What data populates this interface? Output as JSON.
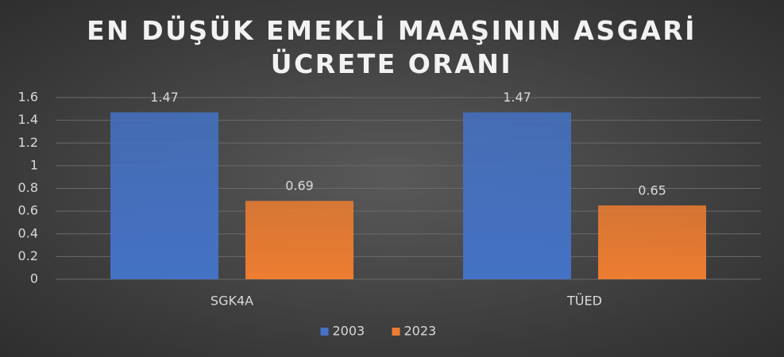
{
  "chart_data": {
    "type": "bar",
    "title": "EN DÜŞÜK EMEKLİ MAAŞININ ASGARİ ÜCRETE ORANI",
    "categories": [
      "SGK4A",
      "TÜED"
    ],
    "series": [
      {
        "name": "2003",
        "color": "#4472c4",
        "values": [
          1.47,
          1.47
        ]
      },
      {
        "name": "2023",
        "color": "#ed7d31",
        "values": [
          0.69,
          0.65
        ]
      }
    ],
    "ylim": [
      0,
      1.6
    ],
    "yticks": [
      0,
      0.2,
      0.4,
      0.6,
      0.8,
      1,
      1.2,
      1.4,
      1.6
    ],
    "grid": true,
    "legend": "bottom"
  }
}
